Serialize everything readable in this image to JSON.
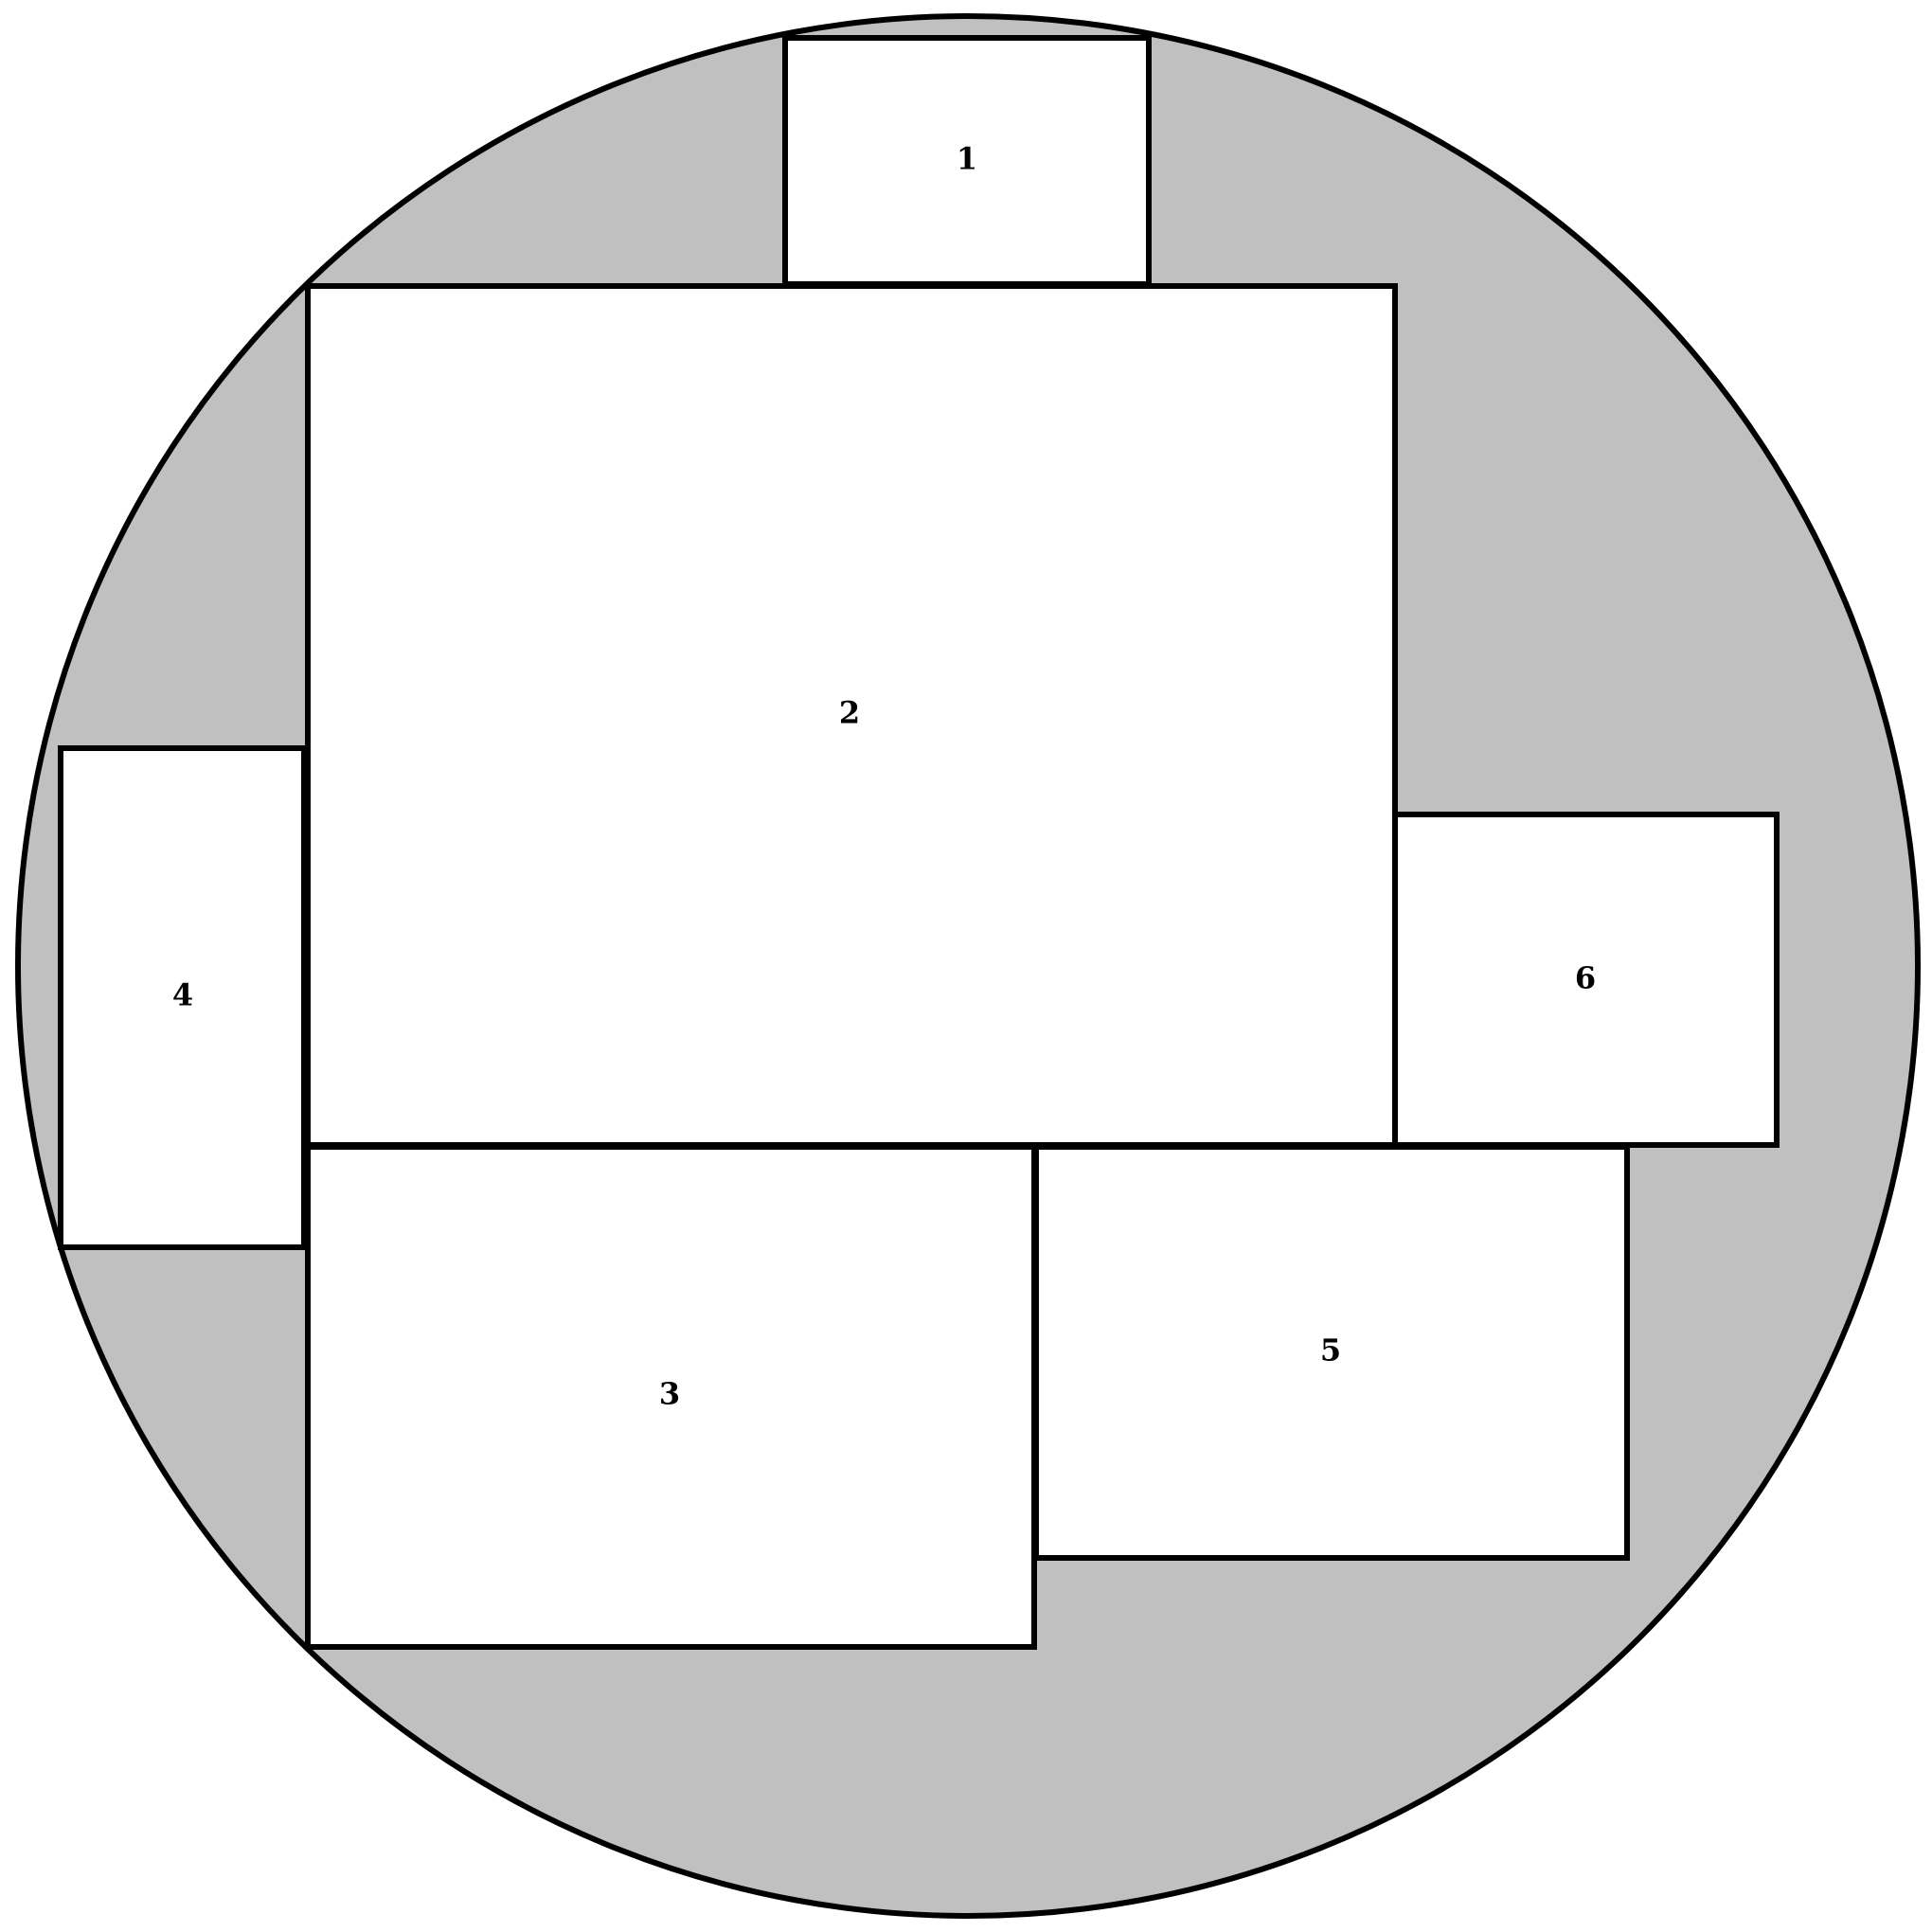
{
  "colors": {
    "background": "#ffffff",
    "circle_fill": "#c0c0c0",
    "rect_fill": "#ffffff",
    "stroke": "#000000",
    "text": "#000000"
  },
  "rectangles": [
    {
      "id": "rect-1",
      "label": "1"
    },
    {
      "id": "rect-2",
      "label": "2"
    },
    {
      "id": "rect-3",
      "label": "3"
    },
    {
      "id": "rect-4",
      "label": "4"
    },
    {
      "id": "rect-5",
      "label": "5"
    },
    {
      "id": "rect-6",
      "label": "6"
    }
  ]
}
